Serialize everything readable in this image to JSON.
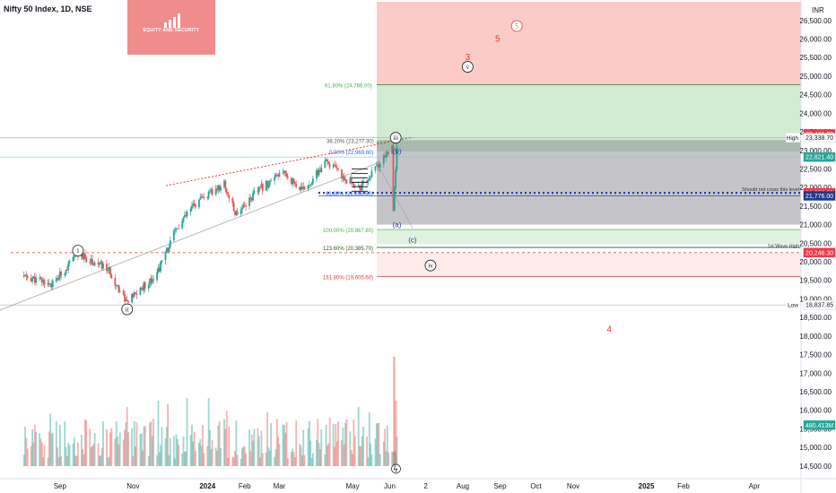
{
  "header": {
    "title": "Nifty 50 Index, 1D, NSE",
    "currency": "INR"
  },
  "logo": {
    "text": "EQUITY AND SECURITY"
  },
  "chart_data": {
    "type": "candlestick",
    "y_axis": {
      "ylim": [
        14400,
        27050
      ],
      "ticks": [
        "26,500.00",
        "26,000.00",
        "25,500.00",
        "25,000.00",
        "24,500.00",
        "24,000.00",
        "23,500.00",
        "23,000.00",
        "22,500.00",
        "22,000.00",
        "21,500.00",
        "21,000.00",
        "20,500.00",
        "20,000.00",
        "19,500.00",
        "19,000.00",
        "18,500.00",
        "18,000.00",
        "17,500.00",
        "17,000.00",
        "16,500.00",
        "16,000.00",
        "15,500.00",
        "15,000.00",
        "14,500.00"
      ]
    },
    "x_axis": {
      "ticks": [
        "Sep",
        "Nov",
        "2024",
        "Feb",
        "Mar",
        "May",
        "Jun",
        "2",
        "Aug",
        "Sep",
        "Oct",
        "Nov",
        "2025",
        "Feb",
        "Apr"
      ]
    },
    "price_path": [
      {
        "date": "2023-08-01",
        "price": 19600
      },
      {
        "date": "2023-08-25",
        "price": 19400
      },
      {
        "date": "2023-09-15",
        "price": 20200
      },
      {
        "date": "2023-10-10",
        "price": 19800
      },
      {
        "date": "2023-10-26",
        "price": 18900
      },
      {
        "date": "2023-11-20",
        "price": 19700
      },
      {
        "date": "2023-12-05",
        "price": 20800
      },
      {
        "date": "2023-12-20",
        "price": 21500
      },
      {
        "date": "2024-01-15",
        "price": 22100
      },
      {
        "date": "2024-01-24",
        "price": 21300
      },
      {
        "date": "2024-02-15",
        "price": 22000
      },
      {
        "date": "2024-03-05",
        "price": 22400
      },
      {
        "date": "2024-03-20",
        "price": 21900
      },
      {
        "date": "2024-04-10",
        "price": 22700
      },
      {
        "date": "2024-04-22",
        "price": 22300
      },
      {
        "date": "2024-05-08",
        "price": 22000
      },
      {
        "date": "2024-05-20",
        "price": 22500
      },
      {
        "date": "2024-05-28",
        "price": 22800
      },
      {
        "date": "2024-06-03",
        "price": 23200
      },
      {
        "date": "2024-06-04",
        "price": 21300
      },
      {
        "date": "2024-06-07",
        "price": 23100
      }
    ],
    "markers": [
      {
        "label": "1",
        "date": "2023-09-15",
        "price": 20300,
        "style": "circle"
      },
      {
        "label": "ii",
        "date": "2023-10-26",
        "price": 18720,
        "style": "circle"
      },
      {
        "label": "iii",
        "date": "2024-06-06",
        "price": 23340,
        "style": "circle"
      },
      {
        "label": "iv",
        "date": "2024-07-05",
        "price": 19900,
        "style": "circle"
      },
      {
        "label": "v",
        "date": "2024-08-05",
        "price": 25250,
        "style": "circle"
      },
      {
        "label": "5",
        "date": "2024-09-15",
        "price": 26350,
        "style": "circle-red"
      },
      {
        "label": "5",
        "date": "2024-08-30",
        "price": 26000,
        "style": "text-red"
      },
      {
        "label": "3",
        "date": "2024-08-05",
        "price": 25500,
        "style": "text-red"
      },
      {
        "label": "4",
        "date": "2024-12-01",
        "price": 18180,
        "style": "text-red"
      },
      {
        "label": "(b)",
        "date": "2024-06-07",
        "price": 22980,
        "style": "text-blue"
      },
      {
        "label": "(a)",
        "date": "2024-06-07",
        "price": 21000,
        "style": "text-blue"
      },
      {
        "label": "(c)",
        "date": "2024-06-20",
        "price": 20590,
        "style": "text-blue"
      }
    ],
    "fib_levels": [
      {
        "label": "61.80% (24,766.00)",
        "price": 24766,
        "color": "#4caf50"
      },
      {
        "label": "38.20% (23,277.30)",
        "price": 23277,
        "color": "#555555"
      },
      {
        "label": "0.00% (22,969.60)",
        "price": 22970,
        "color": "#2962ff"
      },
      {
        "label": "61.80% (21,856.60)",
        "price": 21856,
        "color": "#2962ff"
      },
      {
        "label": "100.00% (20,867.80)",
        "price": 20868,
        "color": "#4caf50"
      },
      {
        "label": "123.60% (20,385.70)",
        "price": 20386,
        "color": "#1b5e20"
      },
      {
        "label": "161.80% (19,605.60)",
        "price": 19606,
        "color": "#e53935"
      }
    ],
    "annotations": [
      {
        "label": "Should not cross this level",
        "price": 21856
      },
      {
        "label": "1st Wave High",
        "price": 20340
      }
    ],
    "price_labels": [
      {
        "value": "23,441.30",
        "price": 23441,
        "bg": "#f23645",
        "fg": "#ffffff"
      },
      {
        "value": "23,338.70",
        "price": 23339,
        "bg": "#ffffff",
        "fg": "#131722"
      },
      {
        "value": "22,821.40",
        "price": 22821,
        "bg": "#26a69a",
        "fg": "#ffffff"
      },
      {
        "value": "21,856.60",
        "price": 21857,
        "bg": "#f23645",
        "fg": "#ffffff"
      },
      {
        "value": "21,776.00",
        "price": 21776,
        "bg": "#1e3a8a",
        "fg": "#ffffff"
      },
      {
        "value": "20,246.30",
        "price": 20246,
        "bg": "#f23645",
        "fg": "#ffffff"
      },
      {
        "value": "18,837.85",
        "price": 18838,
        "bg": "#ffffff",
        "fg": "#131722"
      },
      {
        "value": "480.413M",
        "price": 15600,
        "bg": "#26a69a",
        "fg": "#ffffff"
      }
    ],
    "hl_labels": [
      {
        "label": "High",
        "price": 23339
      },
      {
        "label": "Low",
        "price": 18838
      }
    ],
    "zones": [
      {
        "name": "target-red",
        "from": 24766,
        "to": 27000,
        "color": "rgba(244,67,54,0.28)"
      },
      {
        "name": "target-green",
        "from": 22970,
        "to": 24766,
        "color": "rgba(76,175,80,0.25)"
      },
      {
        "name": "grey-range",
        "from": 21000,
        "to": 23277,
        "color": "rgba(110,110,120,0.40)"
      },
      {
        "name": "green-band",
        "from": 20470,
        "to": 20868,
        "color": "rgba(76,175,80,0.18)"
      },
      {
        "name": "pink-band",
        "from": 19606,
        "to": 20246,
        "color": "rgba(244,67,54,0.10)"
      }
    ]
  }
}
